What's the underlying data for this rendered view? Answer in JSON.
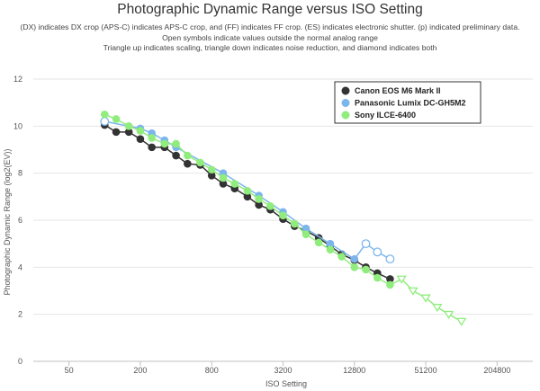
{
  "chart_data": {
    "type": "line",
    "title": "Photographic Dynamic Range versus ISO Setting",
    "subtitle_lines": [
      "(DX) indicates DX crop (APS-C) indicates APS-C crop, and (FF) indicates FF crop. (ES) indicates electronic shutter. (p) indicated preliminary data.",
      "Open symbols indicate values outside the normal analog range",
      "Triangle up indicates scaling, triangle down indicates noise reduction, and diamond indicates both"
    ],
    "xlabel": "ISO Setting",
    "ylabel": "Photographic Dynamic Range (log2(EV))",
    "x_scale": "log2",
    "x_ticks": [
      50,
      200,
      800,
      3200,
      12800,
      51200,
      204800
    ],
    "y_ticks": [
      0,
      2,
      4,
      6,
      8,
      10,
      12
    ],
    "xlim": [
      25,
      409600
    ],
    "ylim": [
      0,
      12
    ],
    "grid": "horizontal",
    "legend_position": "top-right",
    "series": [
      {
        "name": "Canon EOS M6 Mark II",
        "color": "#333333",
        "points": [
          {
            "x": 100,
            "y": 10.05,
            "open": false
          },
          {
            "x": 125,
            "y": 9.75,
            "open": false
          },
          {
            "x": 160,
            "y": 9.75,
            "open": false
          },
          {
            "x": 200,
            "y": 9.45,
            "open": false
          },
          {
            "x": 250,
            "y": 9.1,
            "open": false
          },
          {
            "x": 320,
            "y": 9.1,
            "open": false
          },
          {
            "x": 400,
            "y": 8.75,
            "open": false
          },
          {
            "x": 500,
            "y": 8.4,
            "open": false
          },
          {
            "x": 640,
            "y": 8.35,
            "open": false
          },
          {
            "x": 800,
            "y": 7.9,
            "open": false
          },
          {
            "x": 1000,
            "y": 7.55,
            "open": false
          },
          {
            "x": 1250,
            "y": 7.35,
            "open": false
          },
          {
            "x": 1600,
            "y": 7.0,
            "open": false
          },
          {
            "x": 2000,
            "y": 6.65,
            "open": false
          },
          {
            "x": 2500,
            "y": 6.45,
            "open": false
          },
          {
            "x": 3200,
            "y": 6.05,
            "open": false
          },
          {
            "x": 4000,
            "y": 5.75,
            "open": false
          },
          {
            "x": 5000,
            "y": 5.55,
            "open": false
          },
          {
            "x": 6400,
            "y": 5.25,
            "open": false
          },
          {
            "x": 8000,
            "y": 4.9,
            "open": false
          },
          {
            "x": 10000,
            "y": 4.55,
            "open": false
          },
          {
            "x": 12800,
            "y": 4.3,
            "open": false
          },
          {
            "x": 16000,
            "y": 4.0,
            "open": false
          },
          {
            "x": 20000,
            "y": 3.75,
            "open": false
          },
          {
            "x": 25600,
            "y": 3.5,
            "open": false
          }
        ]
      },
      {
        "name": "Panasonic Lumix DC-GH5M2",
        "color": "#7cb5ec",
        "points": [
          {
            "x": 100,
            "y": 10.2,
            "open": true
          },
          {
            "x": 200,
            "y": 9.9,
            "open": false
          },
          {
            "x": 250,
            "y": 9.7,
            "open": false
          },
          {
            "x": 320,
            "y": 9.4,
            "open": false
          },
          {
            "x": 400,
            "y": 9.1,
            "open": false
          },
          {
            "x": 1000,
            "y": 8.0,
            "open": false
          },
          {
            "x": 2000,
            "y": 7.05,
            "open": false
          },
          {
            "x": 3200,
            "y": 6.35,
            "open": false
          },
          {
            "x": 5000,
            "y": 5.65,
            "open": false
          },
          {
            "x": 8000,
            "y": 5.0,
            "open": false
          },
          {
            "x": 12800,
            "y": 4.35,
            "open": false
          },
          {
            "x": 16000,
            "y": 5.0,
            "open": true
          },
          {
            "x": 20000,
            "y": 4.65,
            "open": true
          },
          {
            "x": 25600,
            "y": 4.35,
            "open": true
          }
        ]
      },
      {
        "name": "Sony ILCE-6400",
        "color": "#90ed7d",
        "points": [
          {
            "x": 100,
            "y": 10.5,
            "open": false,
            "marker": "circle"
          },
          {
            "x": 125,
            "y": 10.3,
            "open": false,
            "marker": "circle"
          },
          {
            "x": 160,
            "y": 10.0,
            "open": false,
            "marker": "circle"
          },
          {
            "x": 200,
            "y": 9.8,
            "open": false,
            "marker": "circle"
          },
          {
            "x": 250,
            "y": 9.5,
            "open": false,
            "marker": "circle"
          },
          {
            "x": 320,
            "y": 9.25,
            "open": false,
            "marker": "circle"
          },
          {
            "x": 400,
            "y": 9.25,
            "open": false,
            "marker": "circle"
          },
          {
            "x": 500,
            "y": 8.75,
            "open": false,
            "marker": "circle"
          },
          {
            "x": 640,
            "y": 8.45,
            "open": false,
            "marker": "circle"
          },
          {
            "x": 800,
            "y": 8.15,
            "open": false,
            "marker": "circle"
          },
          {
            "x": 1000,
            "y": 7.8,
            "open": false,
            "marker": "circle"
          },
          {
            "x": 1250,
            "y": 7.55,
            "open": false,
            "marker": "circle"
          },
          {
            "x": 1600,
            "y": 7.25,
            "open": false,
            "marker": "circle"
          },
          {
            "x": 2000,
            "y": 6.9,
            "open": false,
            "marker": "circle"
          },
          {
            "x": 2500,
            "y": 6.6,
            "open": false,
            "marker": "circle"
          },
          {
            "x": 3200,
            "y": 6.2,
            "open": false,
            "marker": "circle"
          },
          {
            "x": 4000,
            "y": 5.85,
            "open": false,
            "marker": "circle"
          },
          {
            "x": 5000,
            "y": 5.4,
            "open": false,
            "marker": "circle"
          },
          {
            "x": 6400,
            "y": 5.05,
            "open": false,
            "marker": "circle"
          },
          {
            "x": 8000,
            "y": 4.75,
            "open": false,
            "marker": "circle"
          },
          {
            "x": 10000,
            "y": 4.45,
            "open": false,
            "marker": "circle"
          },
          {
            "x": 12800,
            "y": 4.0,
            "open": false,
            "marker": "circle"
          },
          {
            "x": 16000,
            "y": 3.9,
            "open": false,
            "marker": "circle"
          },
          {
            "x": 20000,
            "y": 3.55,
            "open": false,
            "marker": "circle"
          },
          {
            "x": 25600,
            "y": 3.25,
            "open": false,
            "marker": "circle"
          },
          {
            "x": 32000,
            "y": 3.5,
            "open": true,
            "marker": "triangle-down"
          },
          {
            "x": 40000,
            "y": 3.0,
            "open": true,
            "marker": "triangle-down"
          },
          {
            "x": 51200,
            "y": 2.7,
            "open": true,
            "marker": "triangle-down"
          },
          {
            "x": 64000,
            "y": 2.3,
            "open": true,
            "marker": "triangle-down"
          },
          {
            "x": 80000,
            "y": 2.0,
            "open": true,
            "marker": "triangle-down"
          },
          {
            "x": 102400,
            "y": 1.7,
            "open": true,
            "marker": "triangle-down"
          }
        ]
      }
    ]
  }
}
